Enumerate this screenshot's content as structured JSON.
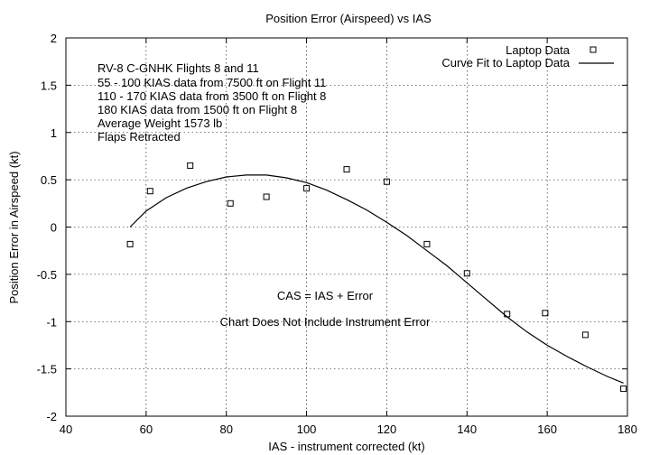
{
  "chart_data": {
    "type": "scatter",
    "title": "Position Error (Airspeed) vs IAS",
    "xlabel": "IAS - instrument corrected (kt)",
    "ylabel": "Position Error in Airspeed (kt)",
    "xlim": [
      40,
      180
    ],
    "ylim": [
      -2,
      2
    ],
    "xticks": [
      40,
      60,
      80,
      100,
      120,
      140,
      160,
      180
    ],
    "yticks": [
      -2,
      -1.5,
      -1,
      -0.5,
      0,
      0.5,
      1,
      1.5,
      2
    ],
    "grid": true,
    "legend_position": "top-right",
    "series": [
      {
        "name": "Laptop Data",
        "marker": "square",
        "x": [
          56,
          61,
          71,
          81,
          90,
          100,
          110,
          120,
          130,
          140,
          150,
          159.5,
          169.5,
          179
        ],
        "y": [
          -0.18,
          0.38,
          0.65,
          0.25,
          0.32,
          0.41,
          0.61,
          0.48,
          -0.18,
          -0.49,
          -0.92,
          -0.91,
          -1.14,
          -1.71
        ]
      },
      {
        "name": "Curve Fit to Laptop Data",
        "style": "line",
        "x": [
          56,
          60,
          65,
          70,
          75,
          80,
          85,
          90,
          95,
          100,
          105,
          110,
          115,
          120,
          125,
          130,
          135,
          140,
          145,
          150,
          155,
          160,
          165,
          170,
          175,
          179
        ],
        "y": [
          0.0,
          0.17,
          0.31,
          0.41,
          0.48,
          0.53,
          0.55,
          0.55,
          0.52,
          0.47,
          0.39,
          0.29,
          0.18,
          0.05,
          -0.09,
          -0.25,
          -0.41,
          -0.59,
          -0.77,
          -0.95,
          -1.11,
          -1.25,
          -1.37,
          -1.48,
          -1.58,
          -1.65
        ]
      }
    ],
    "annotations": [
      "RV-8 C-GNHK Flights 8 and 11",
      "55 - 100 KIAS data from 7500 ft on Flight 11",
      "110 - 170 KIAS data from 3500 ft on Flight 8",
      "180 KIAS data from 1500 ft on Flight 8",
      "Average Weight 1573 lb",
      "Flaps Retracted"
    ],
    "notes": [
      "CAS = IAS + Error",
      "Chart Does Not Include Instrument Error"
    ]
  }
}
